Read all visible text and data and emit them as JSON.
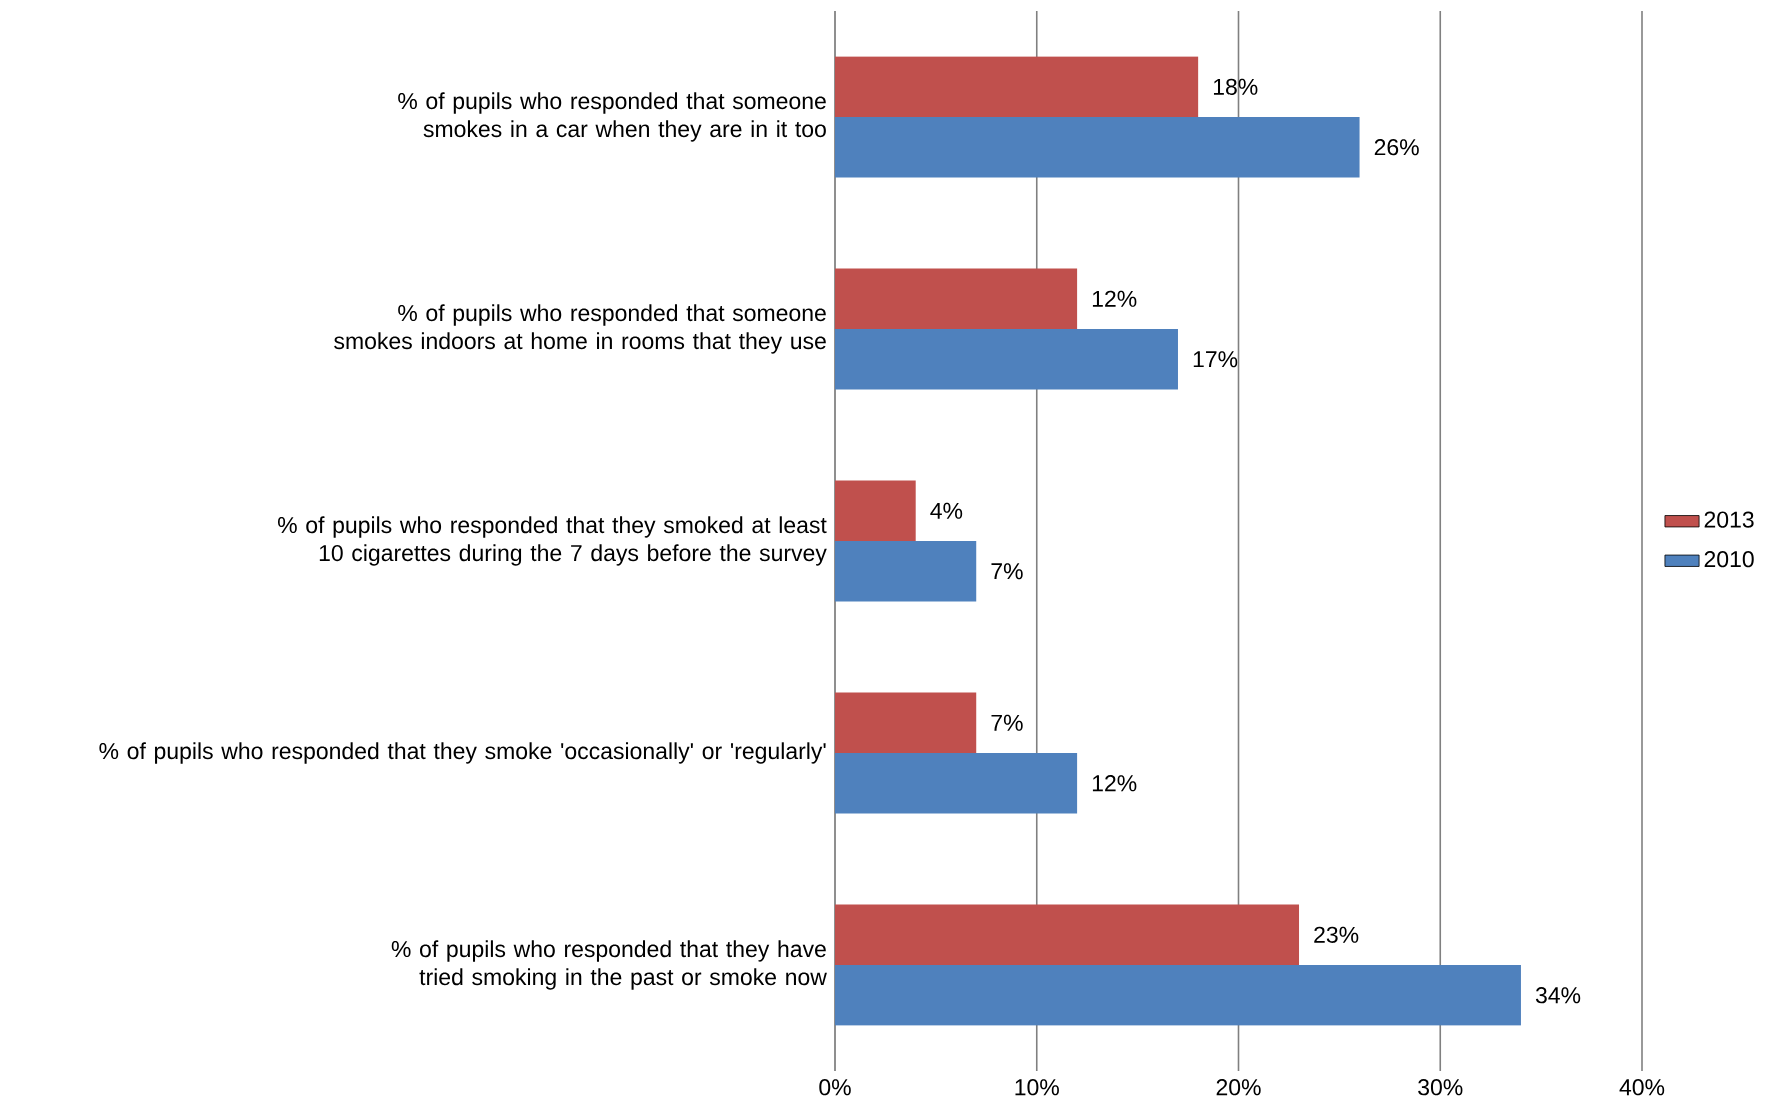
{
  "chart_data": {
    "type": "bar",
    "orientation": "horizontal",
    "categories": [
      "% of pupils who responded that someone smokes in a car when they are in it too",
      "% of pupils who responded that someone smokes indoors at home in rooms that they use",
      "% of pupils who responded that they smoked at least 10 cigarettes during the 7 days before the survey",
      "% of pupils who responded that they smoke 'occasionally' or 'regularly'",
      "% of pupils who responded that they have tried smoking in the past or smoke now"
    ],
    "series": [
      {
        "name": "2013",
        "color": "#c0504d",
        "values": [
          18,
          12,
          4,
          7,
          23
        ],
        "value_labels": [
          "18%",
          "12%",
          "4%",
          "7%",
          "23%"
        ]
      },
      {
        "name": "2010",
        "color": "#4f81bd",
        "values": [
          26,
          17,
          7,
          12,
          34
        ],
        "value_labels": [
          "26%",
          "17%",
          "7%",
          "12%",
          "34%"
        ]
      }
    ],
    "xlim": [
      0,
      40
    ],
    "xticks": [
      {
        "value": 0,
        "label": "0%"
      },
      {
        "value": 10,
        "label": "10%"
      },
      {
        "value": 20,
        "label": "20%"
      },
      {
        "value": 30,
        "label": "30%"
      },
      {
        "value": 40,
        "label": "40%"
      }
    ],
    "grid": "x",
    "legend": "right"
  }
}
